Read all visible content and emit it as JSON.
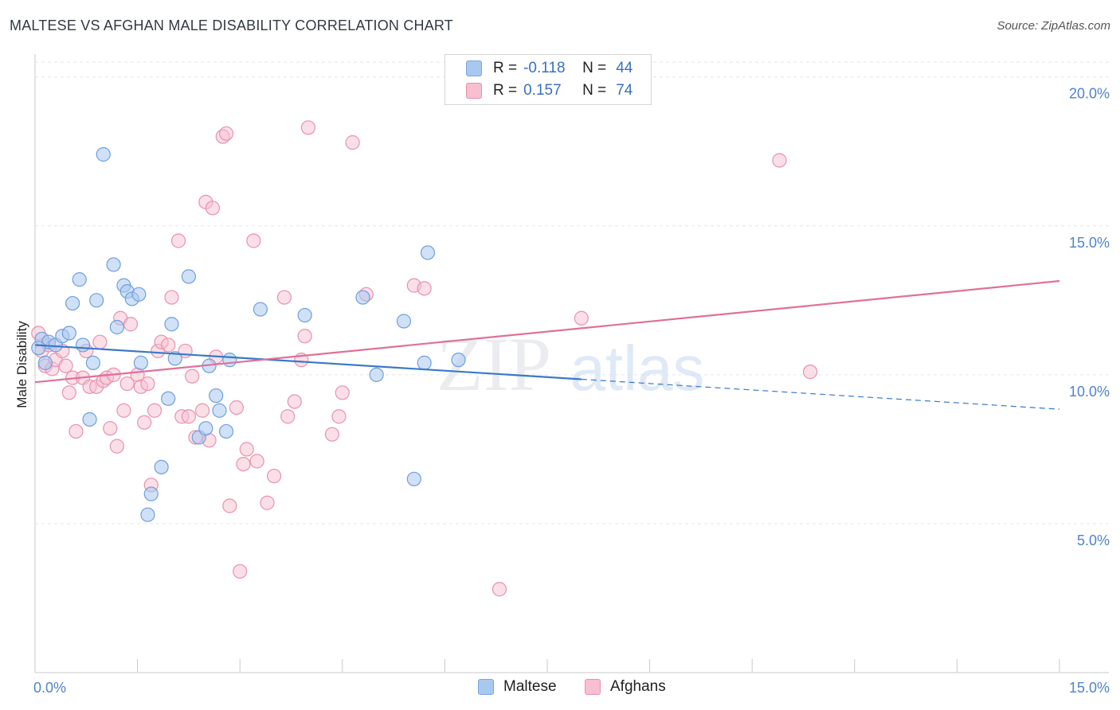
{
  "header": {
    "title": "MALTESE VS AFGHAN MALE DISABILITY CORRELATION CHART",
    "source": "Source: ZipAtlas.com"
  },
  "watermark": {
    "zip": "ZIP",
    "atlas": "atlas"
  },
  "legend": {
    "rows": [
      {
        "r_label": "R =",
        "r_value": "-0.118",
        "n_label": "N =",
        "n_value": "44",
        "color": "#a9c8f0",
        "border": "#7aa6dc"
      },
      {
        "r_label": "R =",
        "r_value": "0.157",
        "n_label": "N =",
        "n_value": "74",
        "color": "#f7bfd0",
        "border": "#e98fae"
      }
    ]
  },
  "bottom_legend": {
    "items": [
      "Maltese",
      "Afghans"
    ]
  },
  "colors": {
    "maltese_fill": "#a9c8f0",
    "maltese_stroke": "#6e9fdc",
    "maltese_line": "#3a78c9",
    "afghans_fill": "#f7bfd0",
    "afghans_stroke": "#e891b0",
    "afghans_line": "#e0709a",
    "tick_text": "#4f83cc",
    "grid": "#e3e6ea"
  },
  "chart_data": {
    "type": "scatter",
    "title": "MALTESE VS AFGHAN MALE DISABILITY CORRELATION CHART",
    "xlabel": "",
    "ylabel": "Male Disability",
    "xlim": [
      0,
      15
    ],
    "ylim": [
      0,
      20.5
    ],
    "x_tick_labels": [
      "0.0%",
      "15.0%"
    ],
    "y_ticks": [
      5,
      10,
      15,
      20
    ],
    "y_tick_labels": [
      "5.0%",
      "10.0%",
      "15.0%",
      "20.0%"
    ],
    "grid": "horizontal dashed",
    "legend_position": "top-center",
    "series": [
      {
        "name": "Maltese",
        "r": -0.118,
        "n": 44,
        "trend": {
          "x": [
            0,
            8.0
          ],
          "y": [
            11.0,
            9.85
          ],
          "dashed_extension_to_x": 15
        },
        "points": [
          [
            0.1,
            11.2
          ],
          [
            0.2,
            11.1
          ],
          [
            0.15,
            10.4
          ],
          [
            0.3,
            11.0
          ],
          [
            0.4,
            11.3
          ],
          [
            0.5,
            11.4
          ],
          [
            0.55,
            12.4
          ],
          [
            0.65,
            13.2
          ],
          [
            0.7,
            11.0
          ],
          [
            0.8,
            8.5
          ],
          [
            0.85,
            10.4
          ],
          [
            0.9,
            12.5
          ],
          [
            1.0,
            17.4
          ],
          [
            1.15,
            13.7
          ],
          [
            1.2,
            11.6
          ],
          [
            1.3,
            13.0
          ],
          [
            1.35,
            12.8
          ],
          [
            1.42,
            12.55
          ],
          [
            1.52,
            12.7
          ],
          [
            1.55,
            10.4
          ],
          [
            1.65,
            5.3
          ],
          [
            1.7,
            6.0
          ],
          [
            1.85,
            6.9
          ],
          [
            1.95,
            9.2
          ],
          [
            2.0,
            11.7
          ],
          [
            2.05,
            10.55
          ],
          [
            2.25,
            13.3
          ],
          [
            2.4,
            7.9
          ],
          [
            2.5,
            8.2
          ],
          [
            2.55,
            10.3
          ],
          [
            2.65,
            9.3
          ],
          [
            2.7,
            8.8
          ],
          [
            2.8,
            8.1
          ],
          [
            2.85,
            10.5
          ],
          [
            3.3,
            12.2
          ],
          [
            3.95,
            12.0
          ],
          [
            4.8,
            12.6
          ],
          [
            5.0,
            10.0
          ],
          [
            5.4,
            11.8
          ],
          [
            5.55,
            6.5
          ],
          [
            5.7,
            10.4
          ],
          [
            5.75,
            14.1
          ],
          [
            6.2,
            10.5
          ],
          [
            0.05,
            10.9
          ]
        ]
      },
      {
        "name": "Afghans",
        "r": 0.157,
        "n": 74,
        "trend": {
          "x": [
            0,
            15
          ],
          "y": [
            9.75,
            13.15
          ]
        },
        "points": [
          [
            0.05,
            11.4
          ],
          [
            0.1,
            10.8
          ],
          [
            0.15,
            10.3
          ],
          [
            0.2,
            11.0
          ],
          [
            0.25,
            10.2
          ],
          [
            0.3,
            10.5
          ],
          [
            0.4,
            10.8
          ],
          [
            0.45,
            10.3
          ],
          [
            0.5,
            9.4
          ],
          [
            0.55,
            9.9
          ],
          [
            0.6,
            8.1
          ],
          [
            0.7,
            9.9
          ],
          [
            0.75,
            10.8
          ],
          [
            0.8,
            9.6
          ],
          [
            0.9,
            9.6
          ],
          [
            0.95,
            11.1
          ],
          [
            1.0,
            9.8
          ],
          [
            1.05,
            9.9
          ],
          [
            1.1,
            8.2
          ],
          [
            1.15,
            10.0
          ],
          [
            1.2,
            7.6
          ],
          [
            1.25,
            11.9
          ],
          [
            1.3,
            8.8
          ],
          [
            1.35,
            9.7
          ],
          [
            1.4,
            11.7
          ],
          [
            1.5,
            10.0
          ],
          [
            1.55,
            9.6
          ],
          [
            1.6,
            8.4
          ],
          [
            1.65,
            9.7
          ],
          [
            1.7,
            6.3
          ],
          [
            1.75,
            8.8
          ],
          [
            1.8,
            10.8
          ],
          [
            1.85,
            11.1
          ],
          [
            1.95,
            11.0
          ],
          [
            2.0,
            12.6
          ],
          [
            2.1,
            14.5
          ],
          [
            2.15,
            8.6
          ],
          [
            2.2,
            10.8
          ],
          [
            2.25,
            8.6
          ],
          [
            2.3,
            9.95
          ],
          [
            2.35,
            7.9
          ],
          [
            2.45,
            8.8
          ],
          [
            2.5,
            15.8
          ],
          [
            2.55,
            7.8
          ],
          [
            2.6,
            15.6
          ],
          [
            2.65,
            10.6
          ],
          [
            2.75,
            18.0
          ],
          [
            2.8,
            18.1
          ],
          [
            2.85,
            5.6
          ],
          [
            2.95,
            8.9
          ],
          [
            3.0,
            3.4
          ],
          [
            3.05,
            7.0
          ],
          [
            3.1,
            7.5
          ],
          [
            3.2,
            14.5
          ],
          [
            3.25,
            7.1
          ],
          [
            3.4,
            5.7
          ],
          [
            3.5,
            6.6
          ],
          [
            3.65,
            12.6
          ],
          [
            3.7,
            8.6
          ],
          [
            3.8,
            9.1
          ],
          [
            3.9,
            10.5
          ],
          [
            3.95,
            11.3
          ],
          [
            4.0,
            18.3
          ],
          [
            4.35,
            8.0
          ],
          [
            4.45,
            8.6
          ],
          [
            4.5,
            9.4
          ],
          [
            4.65,
            17.8
          ],
          [
            4.85,
            12.7
          ],
          [
            5.55,
            13.0
          ],
          [
            5.7,
            12.9
          ],
          [
            6.8,
            2.8
          ],
          [
            8.0,
            11.9
          ],
          [
            10.9,
            17.2
          ],
          [
            11.35,
            10.1
          ]
        ]
      }
    ]
  }
}
